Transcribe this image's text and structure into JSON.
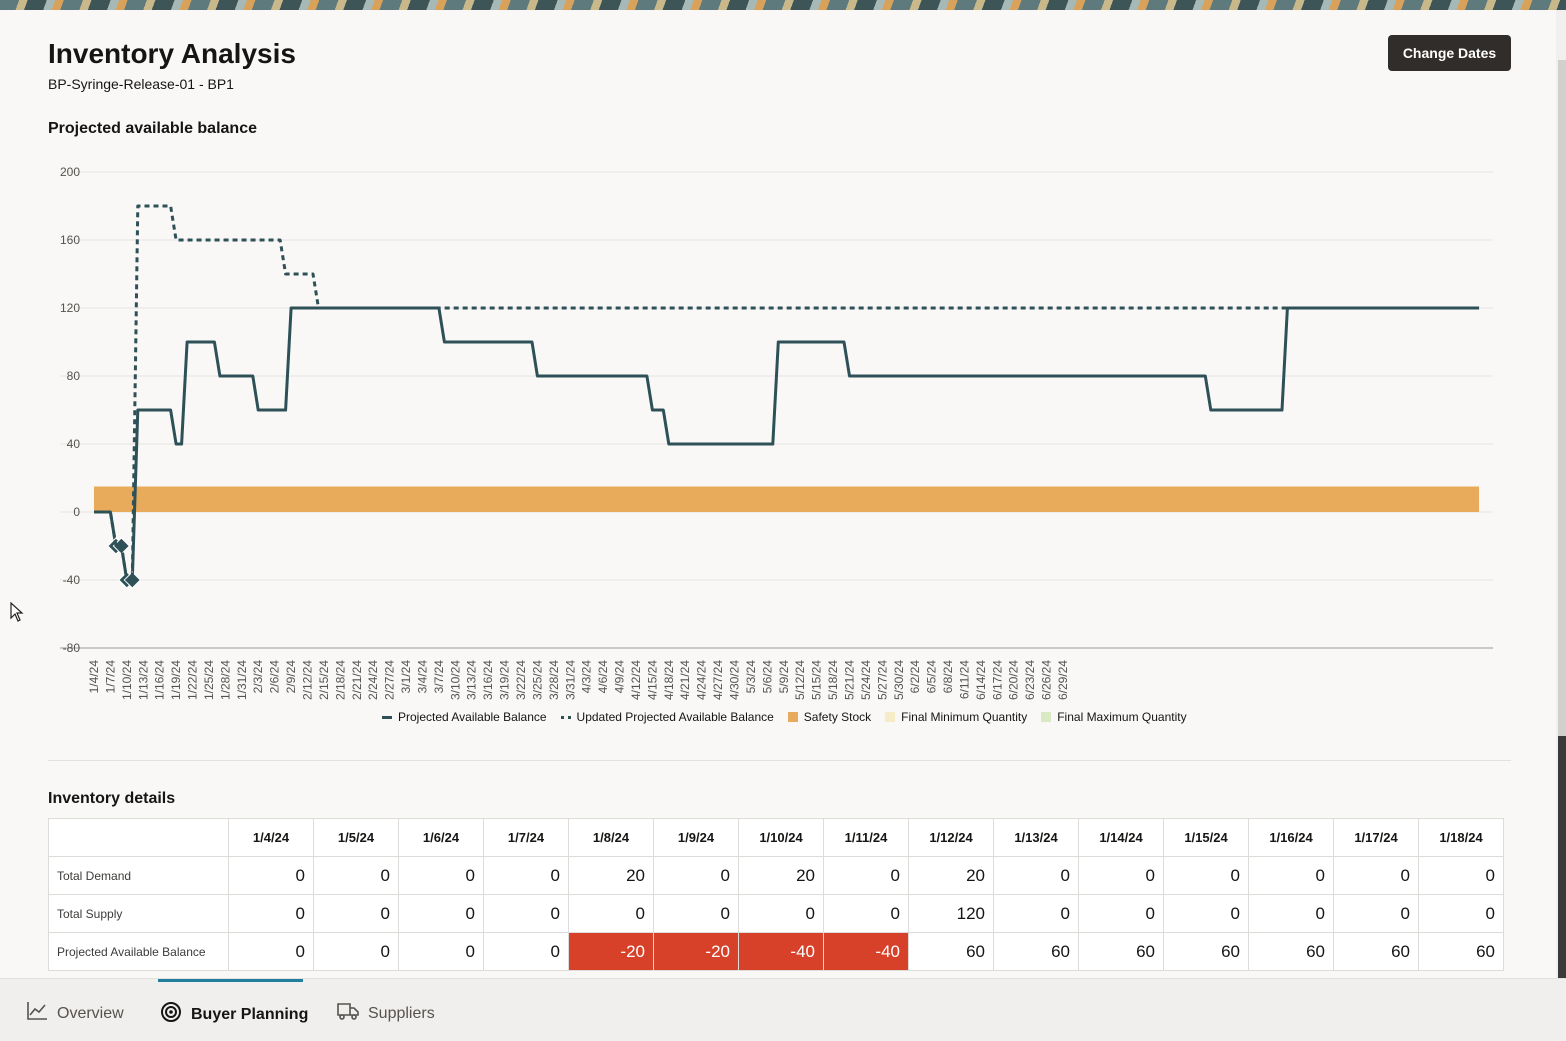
{
  "page": {
    "title": "Inventory Analysis",
    "subtitle": "BP-Syringe-Release-01 - BP1",
    "change_dates_label": "Change Dates"
  },
  "chart_section": {
    "title": "Projected available balance"
  },
  "chart_data": {
    "type": "line",
    "title": "Projected available balance",
    "ylim": [
      -80,
      200
    ],
    "yticks": [
      200,
      160,
      120,
      80,
      40,
      0,
      -40,
      -80
    ],
    "x_labels": [
      "1/4/24",
      "1/7/24",
      "1/10/24",
      "1/13/24",
      "1/16/24",
      "1/19/24",
      "1/22/24",
      "1/25/24",
      "1/28/24",
      "1/31/24",
      "2/3/24",
      "2/6/24",
      "2/9/24",
      "2/12/24",
      "2/15/24",
      "2/18/24",
      "2/21/24",
      "2/24/24",
      "2/27/24",
      "3/1/24",
      "3/4/24",
      "3/7/24",
      "3/10/24",
      "3/13/24",
      "3/16/24",
      "3/19/24",
      "3/22/24",
      "3/25/24",
      "3/28/24",
      "3/31/24",
      "4/3/24",
      "4/6/24",
      "4/9/24",
      "4/12/24",
      "4/15/24",
      "4/18/24",
      "4/21/24",
      "4/24/24",
      "4/27/24",
      "4/30/24",
      "5/3/24",
      "5/6/24",
      "5/9/24",
      "5/12/24",
      "5/15/24",
      "5/18/24",
      "5/21/24",
      "5/24/24",
      "5/27/24",
      "5/30/24",
      "6/2/24",
      "6/5/24",
      "6/8/24",
      "6/11/24",
      "6/14/24",
      "6/17/24",
      "6/20/24",
      "6/23/24",
      "6/26/24",
      "6/29/24"
    ],
    "grid": true,
    "legend_position": "bottom",
    "series": [
      {
        "name": "Projected Available Balance",
        "style": "solid",
        "color": "#2e5158",
        "x": [
          0,
          3,
          4,
          5,
          6,
          7,
          8,
          11,
          14,
          15,
          16,
          17,
          22,
          23,
          29,
          30,
          35,
          36,
          40,
          41,
          63,
          64,
          80,
          81,
          85,
          86,
          101,
          102,
          104,
          105,
          124,
          125,
          127,
          128,
          137,
          138,
          170,
          171,
          203,
          204,
          207,
          208,
          217,
          218,
          221,
          222,
          253
        ],
        "y": [
          0,
          0,
          -20,
          -20,
          -40,
          -40,
          60,
          60,
          60,
          40,
          40,
          100,
          100,
          80,
          80,
          60,
          60,
          120,
          120,
          120,
          120,
          100,
          100,
          80,
          80,
          80,
          80,
          60,
          60,
          40,
          40,
          100,
          100,
          100,
          100,
          80,
          80,
          80,
          80,
          60,
          60,
          60,
          60,
          120,
          120,
          120,
          120
        ],
        "markers_x": [
          4,
          5,
          6,
          7
        ],
        "markers_y": [
          -20,
          -20,
          -40,
          -40
        ]
      },
      {
        "name": "Updated Projected Available Balance",
        "style": "dotted",
        "color": "#2e5158",
        "x": [
          0,
          3,
          4,
          5,
          6,
          7,
          8,
          14,
          15,
          34,
          35,
          40,
          41,
          57,
          58,
          120,
          121,
          253
        ],
        "y": [
          0,
          0,
          -20,
          -20,
          -40,
          -40,
          180,
          180,
          160,
          160,
          140,
          140,
          120,
          120,
          120,
          120,
          120,
          120
        ]
      }
    ],
    "bands": [
      {
        "name": "Safety Stock",
        "color": "#e8aa5b",
        "y_from": 0,
        "y_to": 15
      }
    ],
    "legend": [
      {
        "label": "Projected Available Balance",
        "kind": "line",
        "color": "#2e5158"
      },
      {
        "label": "Updated Projected Available Balance",
        "kind": "dotted",
        "color": "#2e5158"
      },
      {
        "label": "Safety Stock",
        "kind": "box",
        "color": "#e8aa5b"
      },
      {
        "label": "Final Minimum Quantity",
        "kind": "box",
        "color": "#f6ecc8"
      },
      {
        "label": "Final Maximum Quantity",
        "kind": "box",
        "color": "#d8e9c4"
      }
    ]
  },
  "details": {
    "title": "Inventory details",
    "columns": [
      "1/4/24",
      "1/5/24",
      "1/6/24",
      "1/7/24",
      "1/8/24",
      "1/9/24",
      "1/10/24",
      "1/11/24",
      "1/12/24",
      "1/13/24",
      "1/14/24",
      "1/15/24",
      "1/16/24",
      "1/17/24",
      "1/18/24"
    ],
    "rows": [
      {
        "label": "Total Demand",
        "values": [
          "0",
          "0",
          "0",
          "0",
          "20",
          "0",
          "20",
          "0",
          "20",
          "0",
          "0",
          "0",
          "0",
          "0",
          "0"
        ]
      },
      {
        "label": "Total Supply",
        "values": [
          "0",
          "0",
          "0",
          "0",
          "0",
          "0",
          "0",
          "0",
          "120",
          "0",
          "0",
          "0",
          "0",
          "0",
          "0"
        ]
      },
      {
        "label": "Projected Available Balance",
        "values": [
          "0",
          "0",
          "0",
          "0",
          "-20",
          "-20",
          "-40",
          "-40",
          "60",
          "60",
          "60",
          "60",
          "60",
          "60",
          "60"
        ]
      }
    ]
  },
  "bottom_nav": {
    "items": [
      {
        "label": "Overview",
        "icon": "line-chart-icon",
        "active": false
      },
      {
        "label": "Buyer Planning",
        "icon": "target-icon",
        "active": true
      },
      {
        "label": "Suppliers",
        "icon": "truck-icon",
        "active": false
      }
    ]
  }
}
